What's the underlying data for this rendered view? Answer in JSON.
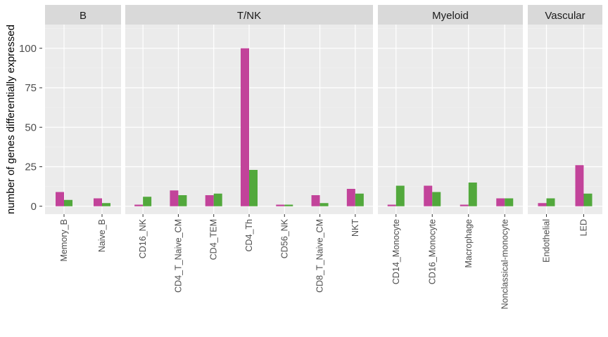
{
  "chart_data": {
    "type": "bar",
    "ylabel": "number of genes differentially expressed",
    "xlabel": "",
    "ylim": [
      -5,
      115
    ],
    "yticks": [
      0,
      25,
      50,
      75,
      100
    ],
    "grid": true,
    "legend": "none",
    "series_colors": [
      "#C2439A",
      "#52A83C"
    ],
    "facets": [
      {
        "name": "B",
        "categories": [
          "Memory_B",
          "Naive_B"
        ],
        "series": [
          {
            "values": [
              9,
              5
            ]
          },
          {
            "values": [
              4,
              2
            ]
          }
        ]
      },
      {
        "name": "T/NK",
        "categories": [
          "CD16_NK",
          "CD4_T_Naive_CM",
          "CD4_TEM",
          "CD4_Th",
          "CD56_NK",
          "CD8_T_Naive_CM",
          "NKT"
        ],
        "series": [
          {
            "values": [
              1,
              10,
              7,
              100,
              1,
              7,
              11
            ]
          },
          {
            "values": [
              6,
              7,
              8,
              23,
              1,
              2,
              8
            ]
          }
        ]
      },
      {
        "name": "Myeloid",
        "categories": [
          "CD14_Monocyte",
          "CD16_Monocyte",
          "Macrophage",
          "Nonclassical-monocyte"
        ],
        "series": [
          {
            "values": [
              1,
              13,
              1,
              5
            ]
          },
          {
            "values": [
              13,
              9,
              15,
              5
            ]
          }
        ]
      },
      {
        "name": "Vascular",
        "categories": [
          "Endothelial",
          "LED"
        ],
        "series": [
          {
            "values": [
              2,
              26
            ]
          },
          {
            "values": [
              5,
              8
            ]
          }
        ]
      }
    ]
  }
}
